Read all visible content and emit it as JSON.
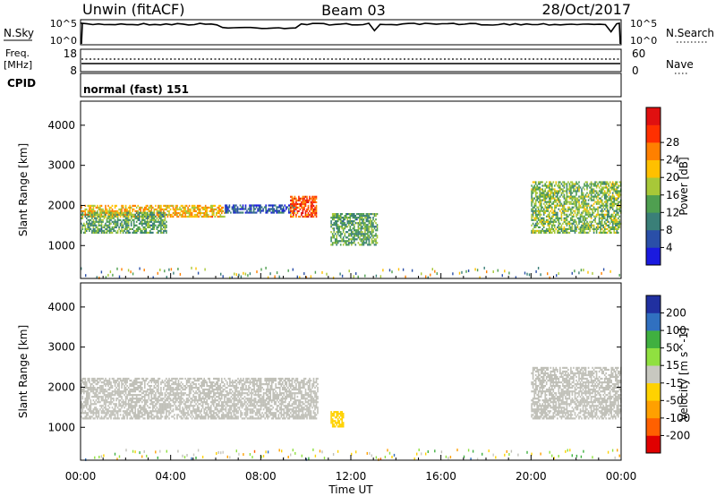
{
  "header": {
    "title": "Unwin (fitACF)",
    "beam": "Beam 03",
    "date": "28/Oct/2017"
  },
  "strip_panels": {
    "nsky_label": "N.Sky",
    "nsearch_label": "N.Search",
    "nsky_ticks": [
      "10^5",
      "10^0"
    ],
    "nsearch_ticks": [
      "10^5",
      "10^0"
    ],
    "freq_label_1": "Freq.",
    "freq_label_2": "[MHz]",
    "freq_ticks": [
      "18",
      "8"
    ],
    "nave_label": "Nave",
    "nave_ticks": [
      "60",
      "0"
    ],
    "cpid_label": "CPID",
    "cpid_text": "normal (fast) 151"
  },
  "colors": {
    "power_scale": [
      "#1a1adf",
      "#2a4fa8",
      "#3a7f78",
      "#4f9f50",
      "#a8c838",
      "#ffc000",
      "#ff8000",
      "#ff3000",
      "#e01010"
    ],
    "velocity_scale": [
      "#e00000",
      "#ff6000",
      "#ffa000",
      "#ffd200",
      "#c8c8c0",
      "#90e040",
      "#40b040",
      "#3070c0",
      "#2030a0"
    ],
    "ground_scatter": "#c0c0b8"
  },
  "chart_data": [
    {
      "type": "heatmap",
      "panel": "power",
      "xlabel": "Time UT",
      "ylabel": "Slant Range [km]",
      "x_tick_labels": [
        "00:00",
        "04:00",
        "08:00",
        "12:00",
        "16:00",
        "20:00",
        "00:00"
      ],
      "x_range_hours": [
        0,
        24
      ],
      "ylim": [
        180,
        4600
      ],
      "y_ticks": [
        1000,
        2000,
        3000,
        4000
      ],
      "colorbar": {
        "label": "Power [dB]",
        "range": [
          0,
          32
        ],
        "ticks": [
          4,
          8,
          12,
          16,
          20,
          24,
          28
        ]
      },
      "features": [
        {
          "name": "band_a",
          "t_start": 0.0,
          "t_end": 6.4,
          "range_start": 1700,
          "range_end": 2000,
          "power": 20
        },
        {
          "name": "band_b",
          "t_start": 0.0,
          "t_end": 3.8,
          "range_start": 1300,
          "range_end": 1800,
          "power": 12
        },
        {
          "name": "band_c",
          "t_start": 6.4,
          "t_end": 9.5,
          "range_start": 1800,
          "range_end": 2000,
          "power": 6
        },
        {
          "name": "band_d",
          "t_start": 9.3,
          "t_end": 10.5,
          "range_start": 1700,
          "range_end": 2200,
          "power": 26
        },
        {
          "name": "patch_e",
          "t_start": 11.1,
          "t_end": 13.2,
          "range_start": 1000,
          "range_end": 1800,
          "power": 12
        },
        {
          "name": "patch_f",
          "t_start": 20.0,
          "t_end": 24.0,
          "range_start": 1300,
          "range_end": 2600,
          "power": 14
        }
      ]
    },
    {
      "type": "heatmap",
      "panel": "velocity",
      "xlabel": "Time UT",
      "ylabel": "Slant Range [km]",
      "x_tick_labels": [
        "00:00",
        "04:00",
        "08:00",
        "12:00",
        "16:00",
        "20:00",
        "00:00"
      ],
      "x_range_hours": [
        0,
        24
      ],
      "ylim": [
        180,
        4600
      ],
      "y_ticks": [
        1000,
        2000,
        3000,
        4000
      ],
      "colorbar": {
        "label": "Velocity [m s^-1]",
        "range": [
          -250,
          250
        ],
        "tick_labels": [
          "200",
          "100",
          "50",
          "15",
          "-15",
          "-50",
          "-100",
          "-200"
        ]
      },
      "features": [
        {
          "name": "ground_scatter_band",
          "t_start": 0.0,
          "t_end": 10.5,
          "range_start": 1200,
          "range_end": 2200,
          "velocity": 0
        },
        {
          "name": "negative_patch",
          "t_start": 11.1,
          "t_end": 11.7,
          "range_start": 1000,
          "range_end": 1400,
          "velocity": -60
        },
        {
          "name": "late_ground_scatter",
          "t_start": 20.0,
          "t_end": 24.0,
          "range_start": 1200,
          "range_end": 2500,
          "velocity": 0
        }
      ]
    }
  ]
}
